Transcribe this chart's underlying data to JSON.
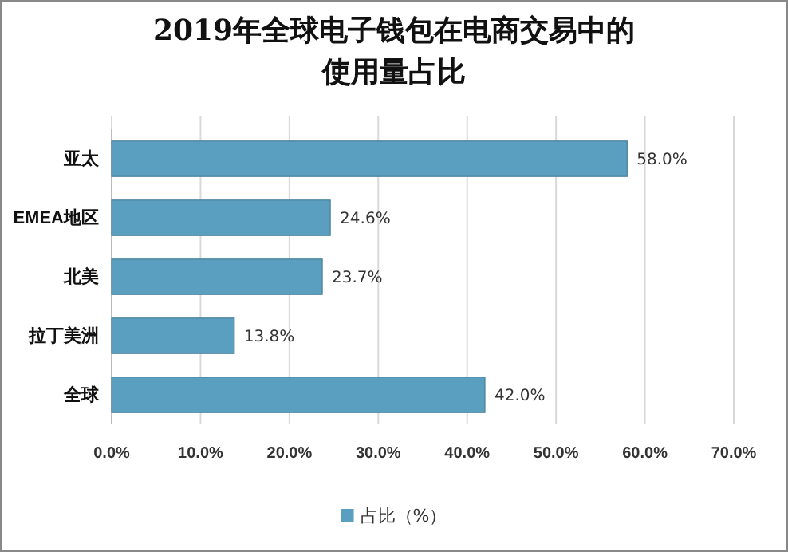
{
  "chart_data": {
    "type": "bar",
    "orientation": "horizontal",
    "title": "2019年全球电子钱包在电商交易中的使用量占比",
    "categories": [
      "亚太",
      "EMEA地区",
      "北美",
      "拉丁美洲",
      "全球"
    ],
    "series": [
      {
        "name": "占比（%）",
        "color": "#5a9fbf",
        "values": [
          58.0,
          24.6,
          23.7,
          13.8,
          42.0
        ],
        "value_labels": [
          "58.0%",
          "24.6%",
          "23.7%",
          "13.8%",
          "42.0%"
        ]
      }
    ],
    "xlim": [
      0,
      70
    ],
    "xticks": [
      {
        "value": 0,
        "label": "0.0%"
      },
      {
        "value": 10,
        "label": "10.0%"
      },
      {
        "value": 20,
        "label": "20.0%"
      },
      {
        "value": 30,
        "label": "30.0%"
      },
      {
        "value": 40,
        "label": "40.0%"
      },
      {
        "value": 50,
        "label": "50.0%"
      },
      {
        "value": 60,
        "label": "60.0%"
      },
      {
        "value": 70,
        "label": "70.0%"
      }
    ],
    "grid": "x",
    "legend": "bottom"
  }
}
